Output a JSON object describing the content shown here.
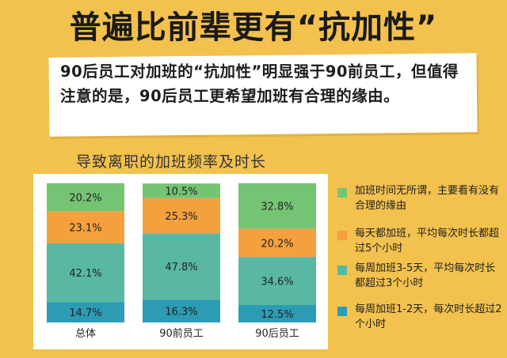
{
  "headline": "普遍比前辈更有“抗加性”",
  "banner": "90后员工对加班的“抗加性”明显强于90前员工，但值得注意的是，90后员工更希望加班有合理的缘由。",
  "chart_title": "导致离职的加班频率及时长",
  "chart_data": {
    "type": "bar",
    "stacked": true,
    "categories": [
      "总体",
      "90前员工",
      "90后员工"
    ],
    "series": [
      {
        "name": "每周加班1-2天，每次时长超过2个小时",
        "color": "#2b9cb4",
        "values": [
          14.7,
          16.3,
          12.5
        ],
        "labels": [
          "14.7%",
          "16.3%",
          "12.5%"
        ]
      },
      {
        "name": "每周加班3-5天，平均每次时长都超过3个小时",
        "color": "#59b8a2",
        "values": [
          42.1,
          47.8,
          34.6
        ],
        "labels": [
          "42.1%",
          "47.8%",
          "34.6%"
        ]
      },
      {
        "name": "每天都加班，平均每次时长都超过5个小时",
        "color": "#f4a03e",
        "values": [
          23.1,
          25.3,
          20.2
        ],
        "labels": [
          "23.1%",
          "25.3%",
          "20.2%"
        ]
      },
      {
        "name": "加班时间无所谓，主要看有没有合理的缘由",
        "color": "#74c473",
        "values": [
          20.2,
          10.5,
          32.8
        ],
        "labels": [
          "20.2%",
          "10.5%",
          "32.8%"
        ]
      }
    ],
    "legend_order": [
      3,
      2,
      1,
      0
    ],
    "legend_position": "right",
    "grid": false,
    "ylim": [
      0,
      100
    ]
  }
}
